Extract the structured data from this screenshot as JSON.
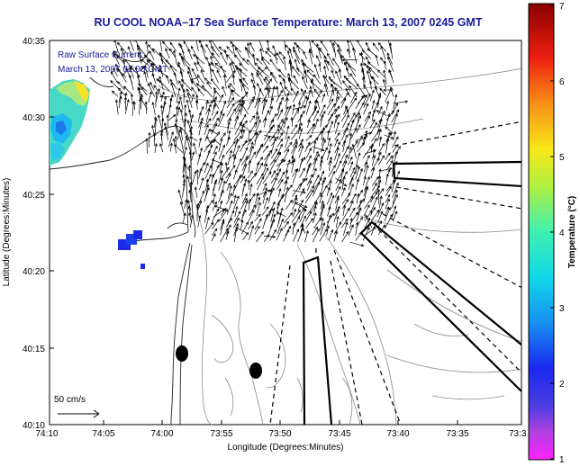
{
  "title": "RU COOL  NOAA–17  Sea Surface Temperature:  March 13, 2007 0245 GMT",
  "overlay": {
    "line1": "Raw Surface Current:",
    "line2": "March 13, 2007 02:00 GMT"
  },
  "scale_label": "50 cm/s",
  "x_axis": {
    "label": "Longitude (Degrees:Minutes)",
    "ticks": [
      "74:10",
      "74:05",
      "74:00",
      "73:55",
      "73:50",
      "73:45",
      "73:40",
      "73:35",
      "73:3"
    ]
  },
  "y_axis": {
    "label": "Latitude (Degrees:Minutes)",
    "ticks": [
      "40:35",
      "40:30",
      "40:25",
      "40:20",
      "40:15",
      "40:10"
    ]
  },
  "colorbar": {
    "label": "Temperature (°C)",
    "ticks": [
      "7",
      "6",
      "5",
      "4",
      "3",
      "2",
      "1"
    ]
  }
}
